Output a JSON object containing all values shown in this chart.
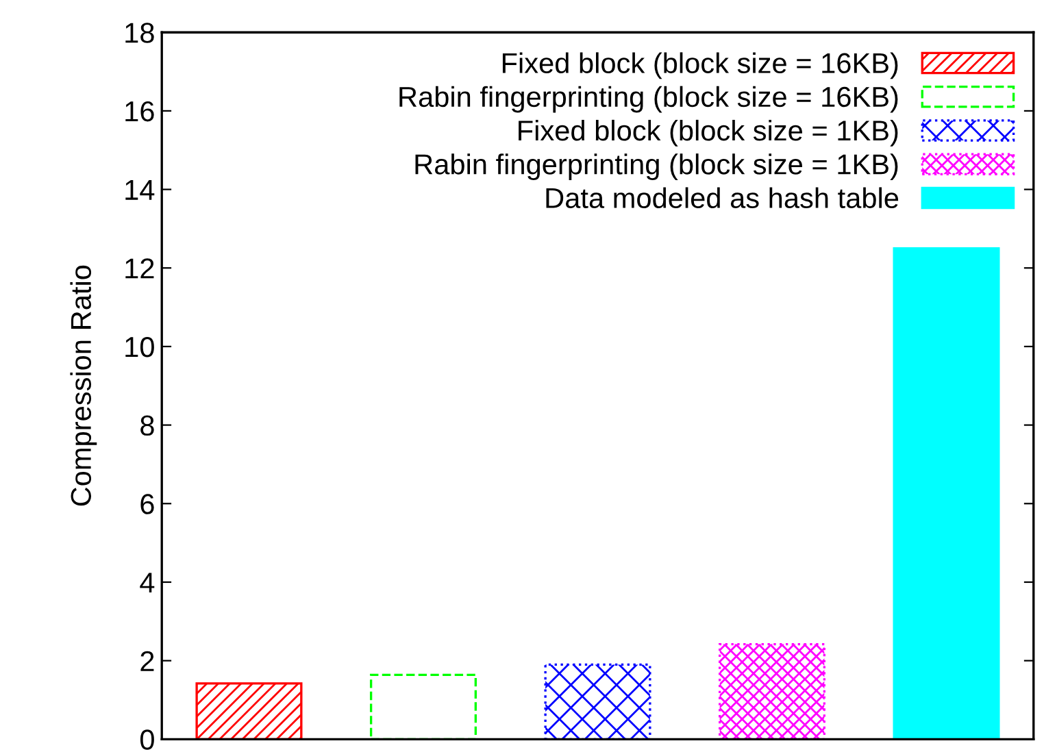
{
  "chart_data": {
    "type": "bar",
    "ylabel": "Compression Ratio",
    "categories": [
      null,
      null,
      null,
      null,
      null
    ],
    "series": [
      {
        "name": "Fixed block (block size = 16KB)",
        "color": "#ff0000",
        "values": [
          1.42,
          null,
          null,
          null,
          null
        ]
      },
      {
        "name": "Rabin fingerprinting (block size = 16KB)",
        "color": "#00ff00",
        "values": [
          null,
          1.64,
          null,
          null,
          null
        ]
      },
      {
        "name": "Fixed block (block size = 1KB)",
        "color": "#0000ff",
        "values": [
          null,
          null,
          1.9,
          null,
          null
        ]
      },
      {
        "name": "Rabin fingerprinting (block size = 1KB)",
        "color": "#ff00ff",
        "values": [
          null,
          null,
          null,
          2.42,
          null
        ]
      },
      {
        "name": "Data modeled as hash table",
        "color": "#00ffff",
        "values": [
          null,
          null,
          null,
          null,
          12.5
        ]
      }
    ],
    "ylim": [
      0,
      18
    ],
    "yticks": [
      0,
      2,
      4,
      6,
      8,
      10,
      12,
      14,
      16,
      18
    ],
    "grid": false,
    "legend": "top right"
  }
}
